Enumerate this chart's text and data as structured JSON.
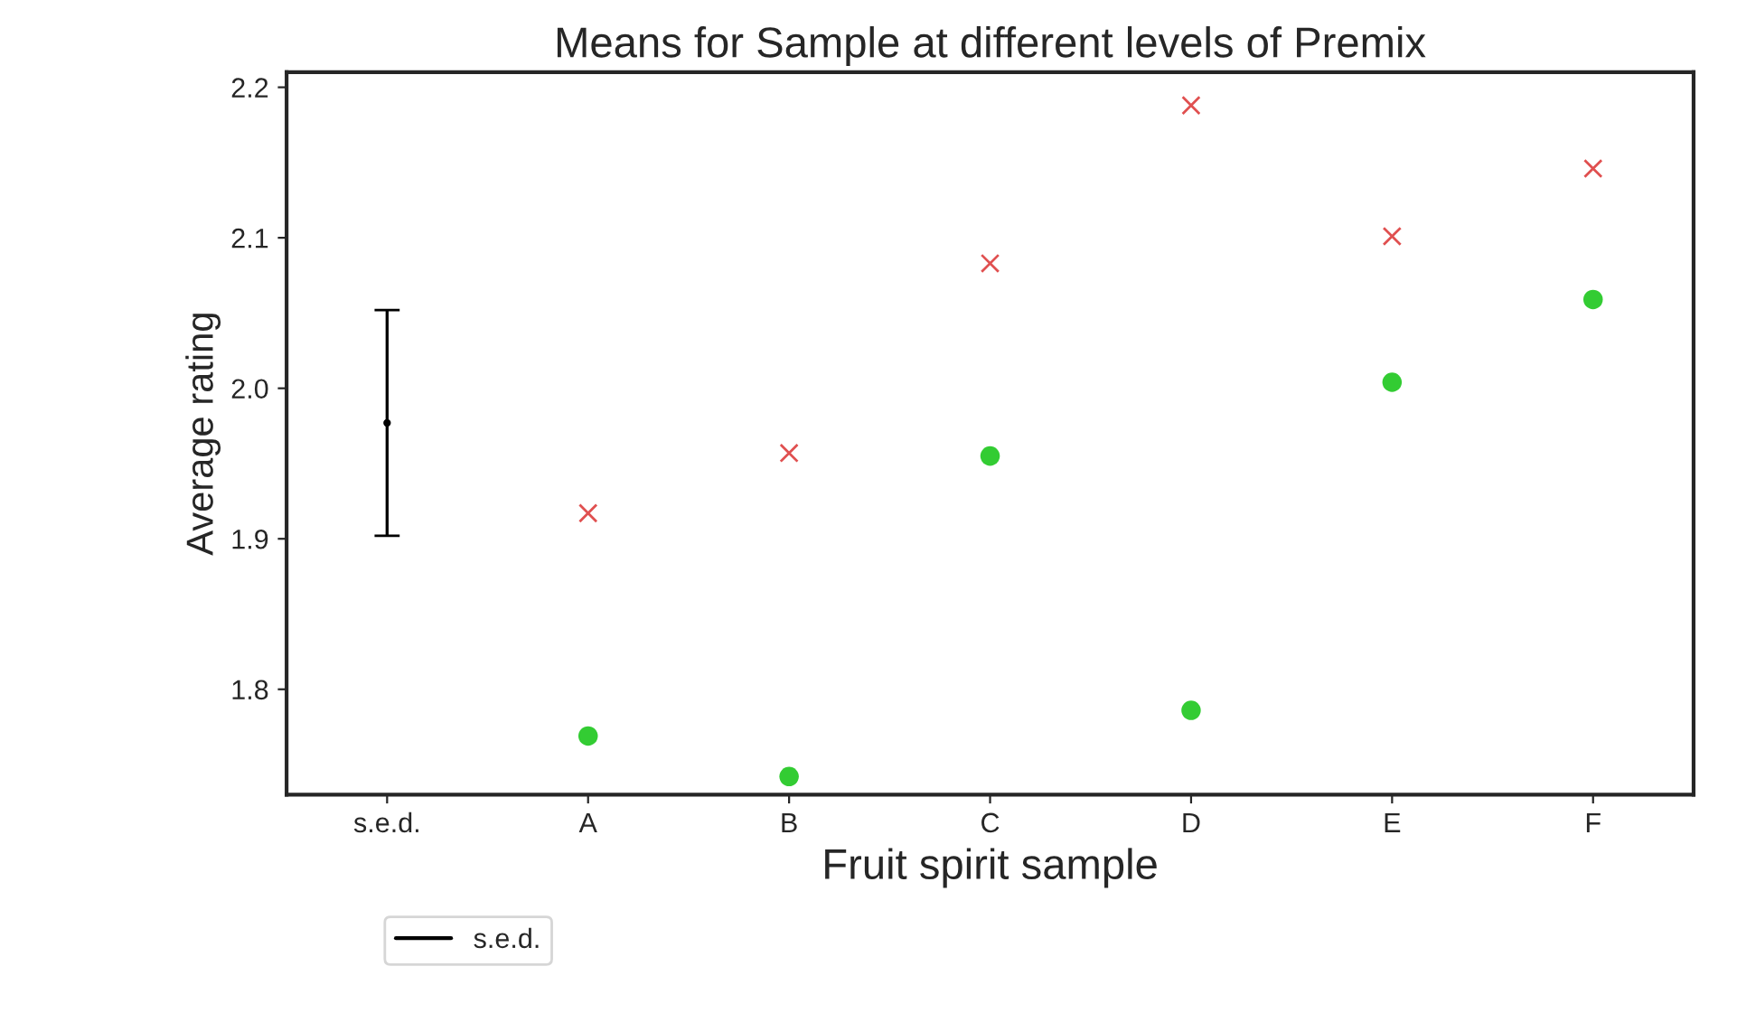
{
  "chart_data": {
    "type": "scatter",
    "title": "Means for Sample at different levels of Premix",
    "xlabel": "Fruit spirit sample",
    "ylabel": "Average rating",
    "categories": [
      "s.e.d.",
      "A",
      "B",
      "C",
      "D",
      "E",
      "F"
    ],
    "series": [
      {
        "color": "#e05050",
        "marker": "cross",
        "values": [
          null,
          1.917,
          1.957,
          2.083,
          2.188,
          2.101,
          2.146
        ]
      },
      {
        "color": "#33cc33",
        "marker": "circle",
        "values": [
          null,
          1.769,
          1.742,
          1.955,
          1.786,
          2.004,
          2.059
        ]
      },
      {
        "name": "s.e.d.",
        "color": "#000000",
        "marker": "none",
        "values": [
          1.977,
          null,
          null,
          null,
          null,
          null,
          null
        ],
        "errors": [
          0.075,
          null,
          null,
          null,
          null,
          null,
          null
        ]
      }
    ],
    "ylim": [
      1.73,
      2.21
    ],
    "yticks": [
      1.8,
      1.9,
      {
        "value": 2.0,
        "label": "2.0"
      },
      2.1,
      2.2
    ],
    "grid": false,
    "legend": "bottom"
  }
}
